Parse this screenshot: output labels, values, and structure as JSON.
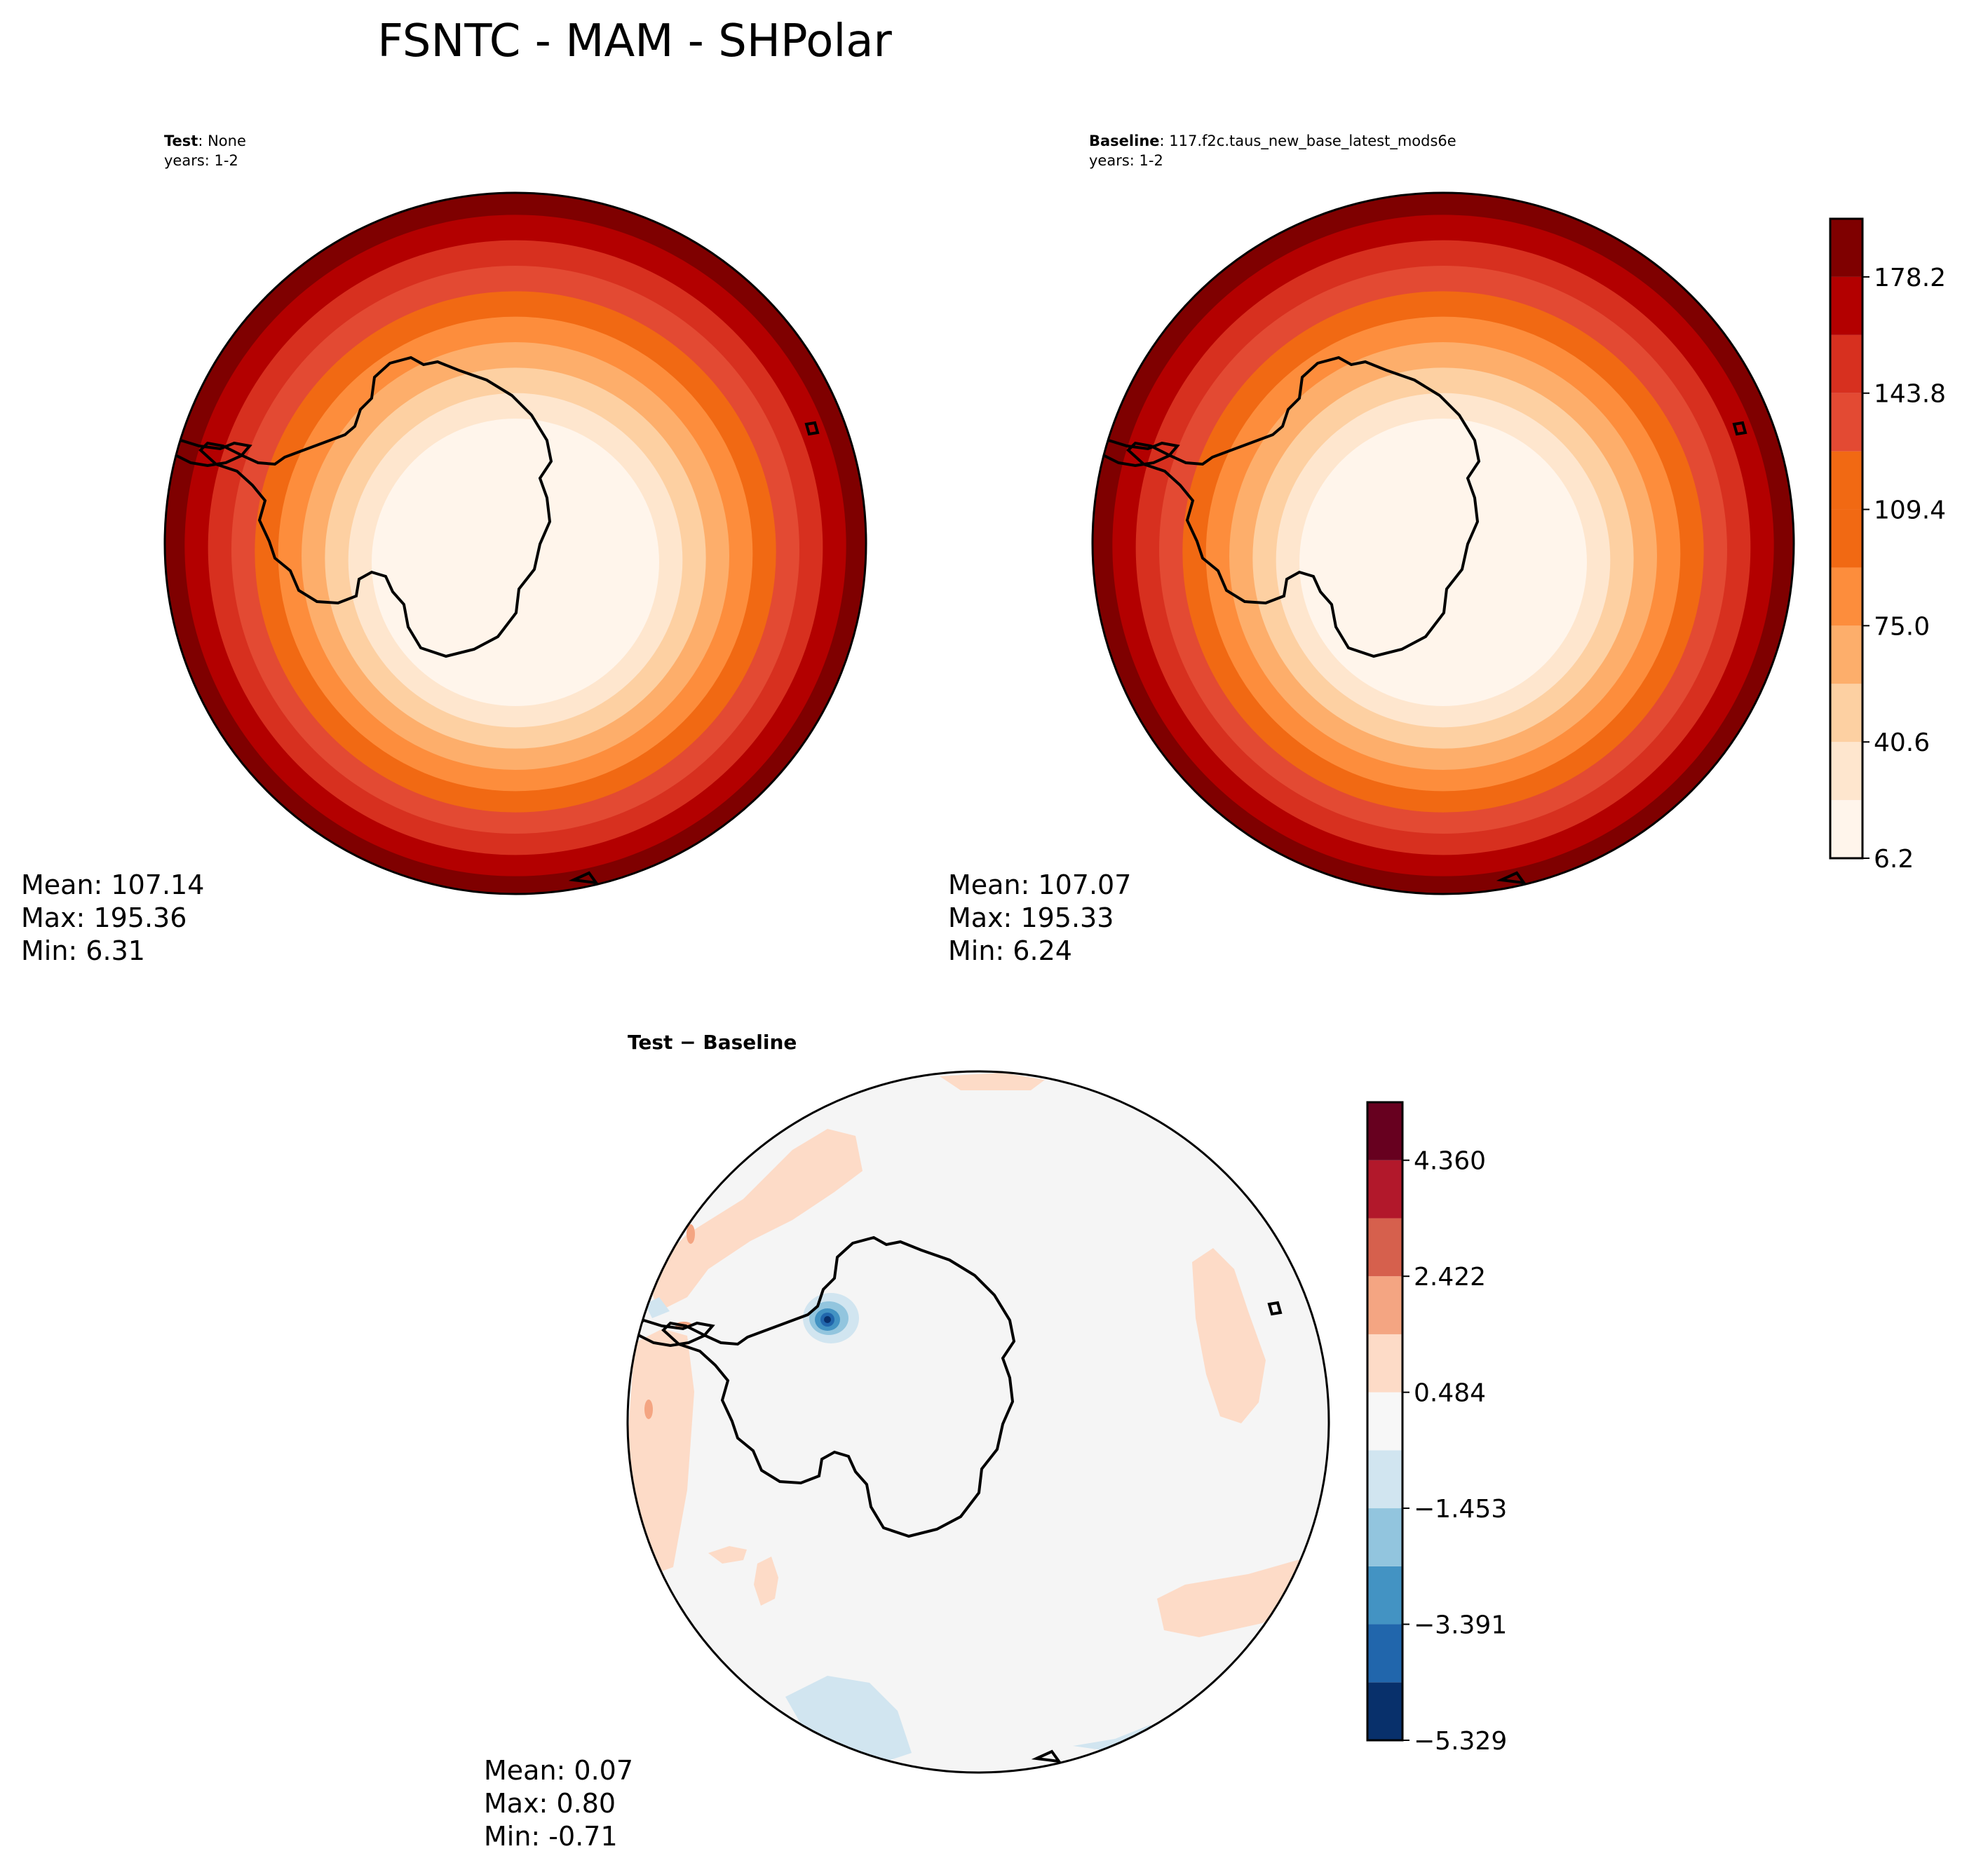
{
  "figure": {
    "title": "FSNTC - MAM - SHPolar"
  },
  "colors": {
    "reds": [
      "#fff5eb",
      "#fee6ce",
      "#fdd0a2",
      "#fdae6b",
      "#fd8d3c",
      "#f16913",
      "#e34a33",
      "#d7301f",
      "#b30000",
      "#7f0000"
    ],
    "diverging": [
      "#08306b",
      "#2166ac",
      "#4393c3",
      "#92c5de",
      "#d1e5f0",
      "#f7f7f7",
      "#fddbc7",
      "#f4a582",
      "#d6604d",
      "#b2182b",
      "#67001f"
    ],
    "coastline": "#000000"
  },
  "panels": {
    "test": {
      "label_bold": "Test",
      "label_rest": ": None",
      "years": "years: 1-2",
      "stats": [
        "Mean: 107.14",
        "Max: 195.36",
        "Min:  6.31"
      ]
    },
    "baseline": {
      "label_bold": "Baseline",
      "label_rest": ": 117.f2c.taus_new_base_latest_mods6e",
      "years": "years: 1-2",
      "stats": [
        "Mean: 107.07",
        "Max: 195.33",
        "Min:  6.24"
      ]
    },
    "diff": {
      "label": "Test − Baseline",
      "stats": [
        "Mean:  0.07",
        "Max:  0.80",
        "Min: -0.71"
      ]
    }
  },
  "chart_data": [
    {
      "type": "heatmap",
      "name": "Test",
      "projection": "south-polar-stereographic",
      "levels": [
        6.2,
        23.4,
        40.6,
        57.8,
        75.0,
        92.2,
        109.4,
        126.6,
        143.8,
        161.0,
        178.2,
        195.4
      ],
      "colorbar_ticks": [
        "6.2",
        "40.6",
        "75.0",
        "109.4",
        "143.8",
        "178.2"
      ],
      "mean": 107.14,
      "max": 195.36,
      "min": 6.31
    },
    {
      "type": "heatmap",
      "name": "Baseline",
      "projection": "south-polar-stereographic",
      "levels": [
        6.2,
        23.4,
        40.6,
        57.8,
        75.0,
        92.2,
        109.4,
        126.6,
        143.8,
        161.0,
        178.2,
        195.4
      ],
      "colorbar_ticks": [
        "6.2",
        "40.6",
        "75.0",
        "109.4",
        "143.8",
        "178.2"
      ],
      "mean": 107.07,
      "max": 195.33,
      "min": 6.24
    },
    {
      "type": "heatmap",
      "name": "Test − Baseline",
      "projection": "south-polar-stereographic",
      "levels": [
        -5.329,
        -4.36,
        -3.391,
        -2.422,
        -1.453,
        -0.484,
        0.484,
        1.453,
        2.422,
        3.391,
        4.36,
        5.329
      ],
      "colorbar_ticks": [
        "−5.329",
        "−3.391",
        "−1.453",
        "0.484",
        "2.422",
        "4.360"
      ],
      "mean": 0.07,
      "max": 0.8,
      "min": -0.71
    }
  ]
}
